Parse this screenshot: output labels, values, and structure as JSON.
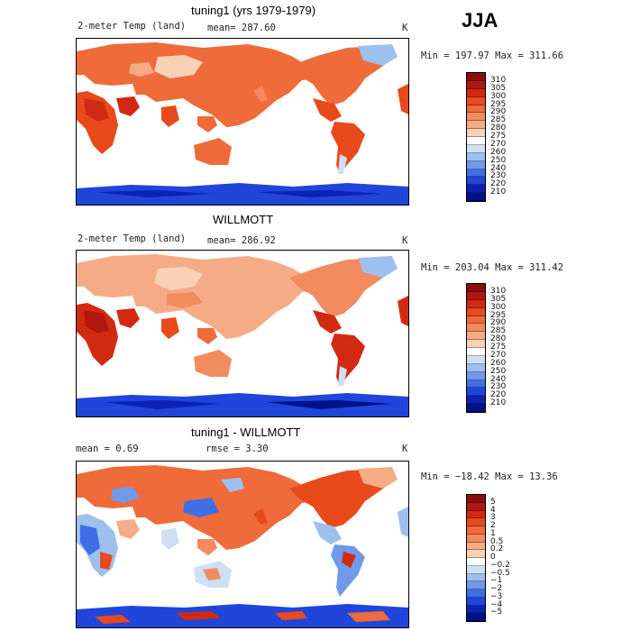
{
  "season": "JJA",
  "panels": [
    {
      "title": "tuning1 (yrs 1979-1979)",
      "left_label": "2-meter Temp (land)",
      "mean_label": "mean= 287.60",
      "units": "K",
      "minmax": "Min = 197.97 Max = 311.66"
    },
    {
      "title": "WILLMOTT",
      "left_label": "2-meter Temp (land)",
      "mean_label": "mean= 286.92",
      "units": "K",
      "minmax": "Min = 203.04 Max = 311.42"
    },
    {
      "title": "tuning1 - WILLMOTT",
      "left_label": "mean =    0.69",
      "mean_label": "rmse =    3.30",
      "units": "K",
      "minmax": "Min = −18.42 Max =   13.36"
    }
  ],
  "colorbars": {
    "temperature": {
      "labels": [
        "310",
        "305",
        "300",
        "295",
        "290",
        "285",
        "280",
        "275",
        "270",
        "260",
        "250",
        "240",
        "230",
        "220",
        "210"
      ],
      "colors": [
        "#8b0d0d",
        "#b0170f",
        "#d22a12",
        "#e84a1c",
        "#ef6b3a",
        "#f28b5e",
        "#f5ac86",
        "#f9d2b6",
        "#ffffff",
        "#cfe0f5",
        "#9ec0ef",
        "#6f9aea",
        "#3f6ee6",
        "#1f45db",
        "#0d22b5",
        "#00118a"
      ]
    },
    "difference": {
      "labels": [
        "5",
        "4",
        "3",
        "2",
        "1",
        "0.5",
        "0.2",
        "0",
        "−0.2",
        "−0.5",
        "−1",
        "−2",
        "−3",
        "−4",
        "−5"
      ],
      "colors": [
        "#8b0d0d",
        "#b0170f",
        "#d22a12",
        "#e84a1c",
        "#ef6b3a",
        "#f28b5e",
        "#f5ac86",
        "#f9d2b6",
        "#ffffff",
        "#cfe0f5",
        "#9ec0ef",
        "#6f9aea",
        "#3f6ee6",
        "#1f45db",
        "#0d22b5",
        "#00118a"
      ]
    }
  }
}
